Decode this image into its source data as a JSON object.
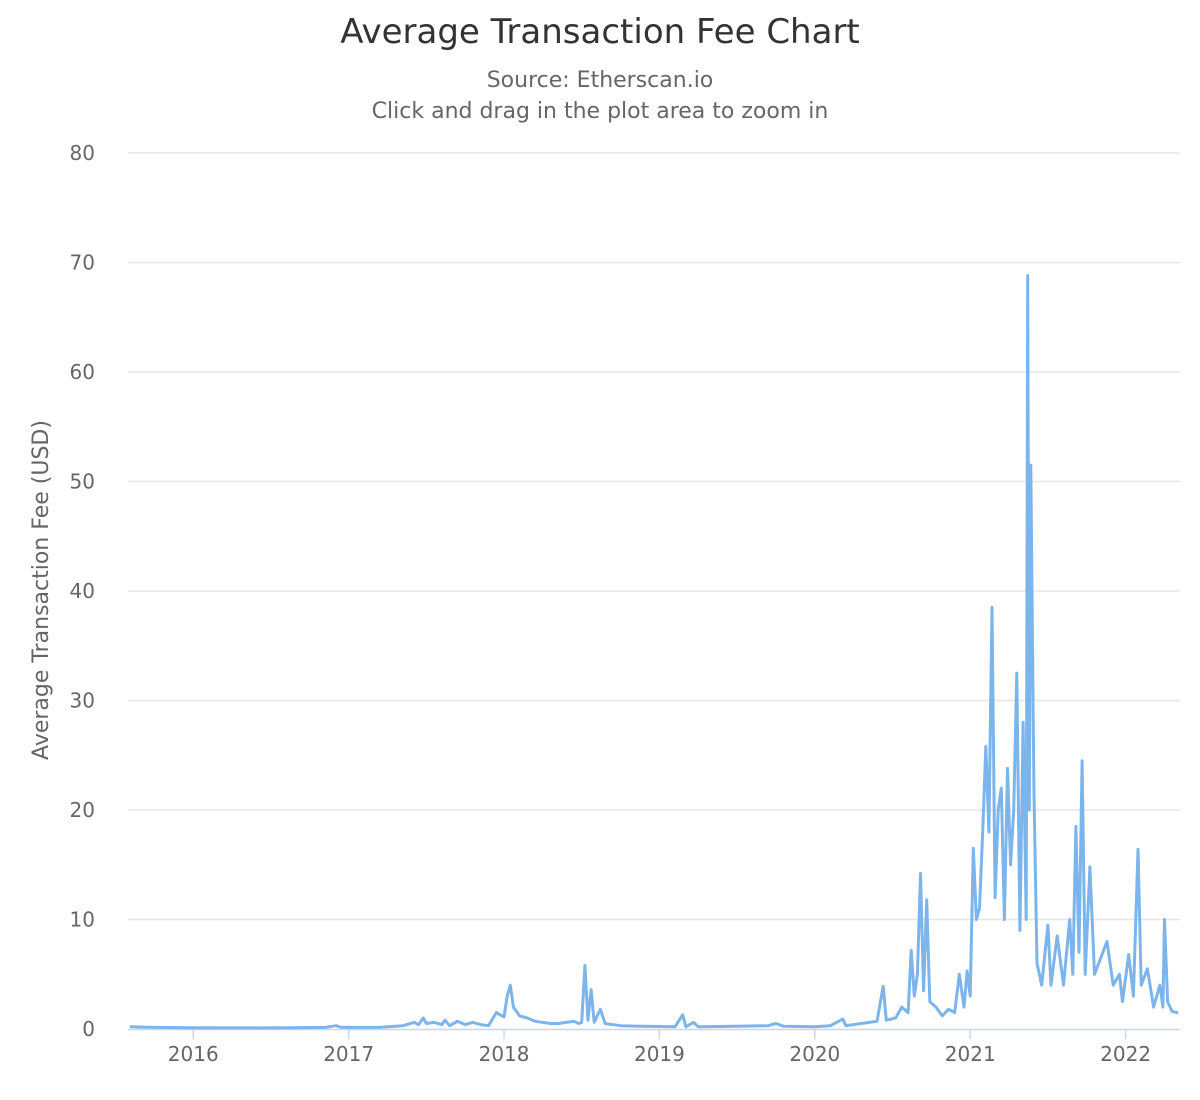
{
  "chart_data": {
    "type": "line",
    "title": "Average Transaction Fee Chart",
    "subtitle": "Source: Etherscan.io",
    "subtitle2": "Click and drag in the plot area to zoom in",
    "xlabel": "",
    "ylabel": "Average Transaction Fee (USD)",
    "ylim": [
      0,
      80
    ],
    "yticks": [
      0,
      10,
      20,
      30,
      40,
      50,
      60,
      70,
      80
    ],
    "xlim": [
      2015.58,
      2022.35
    ],
    "xticks": [
      2016,
      2017,
      2018,
      2019,
      2020,
      2021,
      2022
    ],
    "xtick_labels": [
      "2016",
      "2017",
      "2018",
      "2019",
      "2020",
      "2021",
      "2022"
    ],
    "grid": true,
    "legend": "none",
    "color": "#7cb5ec",
    "series": [
      {
        "values": [
          [
            2015.6,
            0.2
          ],
          [
            2015.75,
            0.15
          ],
          [
            2016.0,
            0.12
          ],
          [
            2016.3,
            0.1
          ],
          [
            2016.6,
            0.12
          ],
          [
            2016.85,
            0.15
          ],
          [
            2016.92,
            0.3
          ],
          [
            2016.95,
            0.15
          ],
          [
            2017.2,
            0.15
          ],
          [
            2017.35,
            0.3
          ],
          [
            2017.42,
            0.6
          ],
          [
            2017.45,
            0.4
          ],
          [
            2017.48,
            1.0
          ],
          [
            2017.5,
            0.5
          ],
          [
            2017.55,
            0.6
          ],
          [
            2017.6,
            0.4
          ],
          [
            2017.62,
            0.8
          ],
          [
            2017.65,
            0.3
          ],
          [
            2017.7,
            0.7
          ],
          [
            2017.75,
            0.4
          ],
          [
            2017.8,
            0.6
          ],
          [
            2017.85,
            0.4
          ],
          [
            2017.9,
            0.3
          ],
          [
            2017.95,
            1.5
          ],
          [
            2018.0,
            1.1
          ],
          [
            2018.02,
            3.0
          ],
          [
            2018.04,
            4.0
          ],
          [
            2018.06,
            2.0
          ],
          [
            2018.1,
            1.2
          ],
          [
            2018.15,
            1.0
          ],
          [
            2018.2,
            0.7
          ],
          [
            2018.3,
            0.5
          ],
          [
            2018.35,
            0.5
          ],
          [
            2018.4,
            0.6
          ],
          [
            2018.45,
            0.7
          ],
          [
            2018.48,
            0.5
          ],
          [
            2018.5,
            0.6
          ],
          [
            2018.52,
            5.8
          ],
          [
            2018.54,
            0.8
          ],
          [
            2018.56,
            3.6
          ],
          [
            2018.58,
            0.6
          ],
          [
            2018.62,
            1.8
          ],
          [
            2018.65,
            0.5
          ],
          [
            2018.75,
            0.3
          ],
          [
            2018.9,
            0.25
          ],
          [
            2019.1,
            0.2
          ],
          [
            2019.15,
            1.3
          ],
          [
            2019.17,
            0.2
          ],
          [
            2019.22,
            0.6
          ],
          [
            2019.25,
            0.2
          ],
          [
            2019.5,
            0.25
          ],
          [
            2019.7,
            0.3
          ],
          [
            2019.75,
            0.5
          ],
          [
            2019.8,
            0.25
          ],
          [
            2020.0,
            0.2
          ],
          [
            2020.1,
            0.3
          ],
          [
            2020.18,
            0.9
          ],
          [
            2020.2,
            0.3
          ],
          [
            2020.3,
            0.5
          ],
          [
            2020.4,
            0.7
          ],
          [
            2020.44,
            3.9
          ],
          [
            2020.46,
            0.8
          ],
          [
            2020.52,
            1.0
          ],
          [
            2020.56,
            2.0
          ],
          [
            2020.6,
            1.5
          ],
          [
            2020.62,
            7.2
          ],
          [
            2020.64,
            3.0
          ],
          [
            2020.66,
            5.0
          ],
          [
            2020.68,
            14.2
          ],
          [
            2020.7,
            3.5
          ],
          [
            2020.72,
            11.8
          ],
          [
            2020.74,
            2.5
          ],
          [
            2020.78,
            2.0
          ],
          [
            2020.82,
            1.2
          ],
          [
            2020.86,
            1.8
          ],
          [
            2020.9,
            1.5
          ],
          [
            2020.93,
            5.0
          ],
          [
            2020.96,
            2.0
          ],
          [
            2020.98,
            5.3
          ],
          [
            2021.0,
            3.0
          ],
          [
            2021.02,
            16.5
          ],
          [
            2021.04,
            10.0
          ],
          [
            2021.06,
            11.0
          ],
          [
            2021.08,
            18.0
          ],
          [
            2021.1,
            25.8
          ],
          [
            2021.12,
            18.0
          ],
          [
            2021.14,
            38.5
          ],
          [
            2021.16,
            12.0
          ],
          [
            2021.18,
            20.0
          ],
          [
            2021.2,
            22.0
          ],
          [
            2021.22,
            10.0
          ],
          [
            2021.24,
            23.8
          ],
          [
            2021.26,
            15.0
          ],
          [
            2021.28,
            20.0
          ],
          [
            2021.3,
            32.5
          ],
          [
            2021.32,
            9.0
          ],
          [
            2021.34,
            28.0
          ],
          [
            2021.36,
            10.0
          ],
          [
            2021.37,
            68.8
          ],
          [
            2021.38,
            20.0
          ],
          [
            2021.39,
            51.5
          ],
          [
            2021.41,
            22.0
          ],
          [
            2021.43,
            6.0
          ],
          [
            2021.46,
            4.0
          ],
          [
            2021.5,
            9.5
          ],
          [
            2021.52,
            4.0
          ],
          [
            2021.56,
            8.5
          ],
          [
            2021.6,
            4.0
          ],
          [
            2021.64,
            10.0
          ],
          [
            2021.66,
            5.0
          ],
          [
            2021.68,
            18.5
          ],
          [
            2021.7,
            7.0
          ],
          [
            2021.72,
            24.5
          ],
          [
            2021.74,
            5.0
          ],
          [
            2021.77,
            14.8
          ],
          [
            2021.8,
            5.0
          ],
          [
            2021.84,
            6.5
          ],
          [
            2021.88,
            8.0
          ],
          [
            2021.92,
            4.0
          ],
          [
            2021.96,
            5.0
          ],
          [
            2021.98,
            2.5
          ],
          [
            2022.02,
            6.8
          ],
          [
            2022.05,
            3.0
          ],
          [
            2022.08,
            16.4
          ],
          [
            2022.1,
            4.0
          ],
          [
            2022.14,
            5.5
          ],
          [
            2022.18,
            2.0
          ],
          [
            2022.22,
            4.0
          ],
          [
            2022.24,
            2.0
          ],
          [
            2022.25,
            10.0
          ],
          [
            2022.27,
            2.5
          ],
          [
            2022.3,
            1.6
          ],
          [
            2022.33,
            1.5
          ]
        ]
      }
    ]
  }
}
